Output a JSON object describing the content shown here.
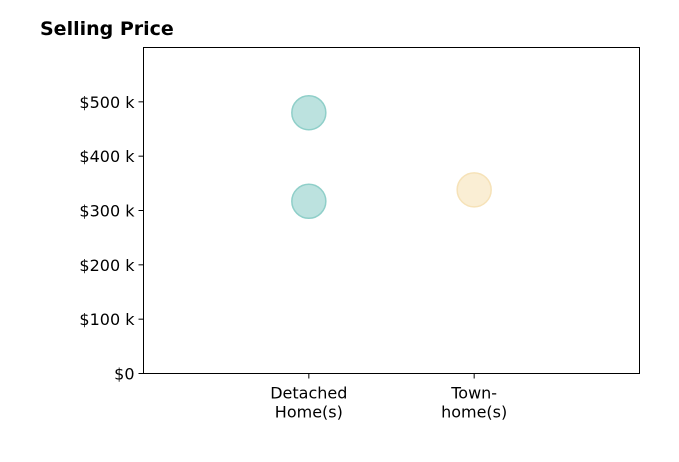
{
  "chart_data": {
    "type": "scatter",
    "title": "Selling Price",
    "xlabel": "",
    "ylabel": "",
    "categories": [
      {
        "lines": [
          "Detached",
          "Home(s)"
        ]
      },
      {
        "lines": [
          "Town-",
          "home(s)"
        ]
      }
    ],
    "x_range": [
      -1,
      2
    ],
    "ylim": [
      0,
      600000
    ],
    "y_ticks": [
      {
        "value": 0,
        "label": "$0"
      },
      {
        "value": 100000,
        "label": "$100 k"
      },
      {
        "value": 200000,
        "label": "$200 k"
      },
      {
        "value": 300000,
        "label": "$300 k"
      },
      {
        "value": 400000,
        "label": "$400 k"
      },
      {
        "value": 500000,
        "label": "$500 k"
      }
    ],
    "grid": false,
    "legend": "none",
    "series": [
      {
        "category_index": 0,
        "color": "#8fcfc9",
        "points": [
          480000,
          317000
        ]
      },
      {
        "category_index": 1,
        "color": "#f6e2b8",
        "points": [
          338000
        ]
      }
    ]
  }
}
